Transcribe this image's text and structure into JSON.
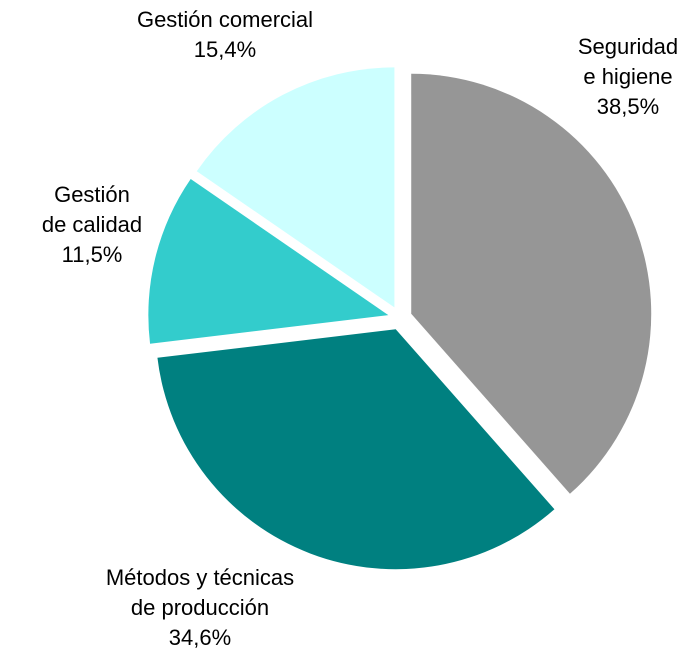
{
  "chart_data": {
    "type": "pie",
    "categories": [
      "Seguridad\ne higiene",
      "Métodos y técnicas\nde producción",
      "Gestión\nde calidad",
      "Gestión comercial"
    ],
    "values": [
      38.5,
      34.6,
      11.5,
      15.4
    ],
    "value_labels": [
      "38,5%",
      "34,6%",
      "11,5%",
      "15,4%"
    ],
    "colors": [
      "#969696",
      "#008080",
      "#33cccc",
      "#ccffff"
    ]
  }
}
